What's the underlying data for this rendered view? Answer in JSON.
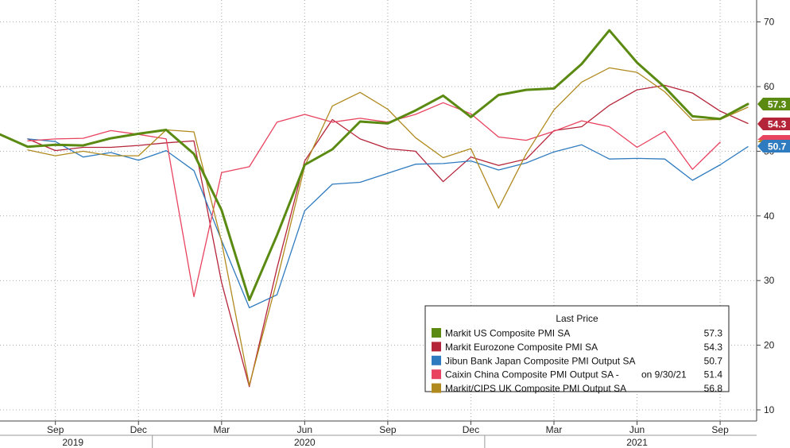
{
  "chart_data": {
    "type": "line",
    "x": [
      "2019-07",
      "2019-08",
      "2019-09",
      "2019-10",
      "2019-11",
      "2019-12",
      "2020-01",
      "2020-02",
      "2020-03",
      "2020-04",
      "2020-05",
      "2020-06",
      "2020-07",
      "2020-08",
      "2020-09",
      "2020-10",
      "2020-11",
      "2020-12",
      "2021-01",
      "2021-02",
      "2021-03",
      "2021-04",
      "2021-05",
      "2021-06",
      "2021-07",
      "2021-08",
      "2021-09",
      "2021-10"
    ],
    "x_ticks": [
      {
        "x": "2019-09",
        "label": "Sep"
      },
      {
        "x": "2019-12",
        "label": "Dec"
      },
      {
        "x": "2020-03",
        "label": "Mar"
      },
      {
        "x": "2020-06",
        "label": "Jun"
      },
      {
        "x": "2020-09",
        "label": "Sep"
      },
      {
        "x": "2020-12",
        "label": "Dec"
      },
      {
        "x": "2021-03",
        "label": "Mar"
      },
      {
        "x": "2021-06",
        "label": "Jun"
      },
      {
        "x": "2021-09",
        "label": "Sep"
      }
    ],
    "year_labels": [
      {
        "x": "2019-09",
        "label": "2019"
      },
      {
        "x": "2020-06",
        "label": "2020"
      },
      {
        "x": "2021-06",
        "label": "2021"
      }
    ],
    "y_ticks": [
      10,
      20,
      30,
      40,
      50,
      60,
      70
    ],
    "ylim": [
      9,
      73
    ],
    "y_axis_side": "right",
    "grid": true,
    "legend": {
      "title": "Last Price",
      "placement": "bottom-right"
    },
    "series": [
      {
        "name": "Markit US Composite PMI SA",
        "last": "57.3",
        "color": "#5a8a12",
        "width": 3,
        "values": [
          52.6,
          50.7,
          51.0,
          50.9,
          52.0,
          52.7,
          53.3,
          49.6,
          40.9,
          27.0,
          37.0,
          47.9,
          50.3,
          54.6,
          54.3,
          56.3,
          58.6,
          55.3,
          58.7,
          59.5,
          59.7,
          63.5,
          68.7,
          63.7,
          59.9,
          55.4,
          55.0,
          57.3
        ]
      },
      {
        "name": "Markit Eurozone Composite PMI SA",
        "last": "54.3",
        "color": "#b5253a",
        "width": 1.3,
        "values": [
          null,
          51.9,
          50.1,
          50.6,
          50.6,
          50.9,
          51.3,
          51.6,
          29.7,
          13.6,
          31.9,
          48.5,
          54.9,
          51.9,
          50.4,
          50.0,
          45.3,
          49.1,
          47.8,
          48.8,
          53.2,
          53.8,
          57.1,
          59.5,
          60.2,
          59.0,
          56.2,
          54.3
        ]
      },
      {
        "name": "Jibun Bank Japan Composite PMI Output SA",
        "last": "50.7",
        "color": "#2f7bbf",
        "width": 1.3,
        "values": [
          null,
          51.9,
          51.5,
          49.1,
          49.8,
          48.6,
          50.1,
          47.0,
          36.2,
          25.8,
          27.8,
          40.8,
          44.9,
          45.2,
          46.6,
          48.0,
          48.1,
          48.5,
          47.1,
          48.2,
          49.9,
          51.0,
          48.8,
          48.9,
          48.8,
          45.5,
          47.9,
          50.7
        ]
      },
      {
        "name": "Caixin China Composite PMI Output SA -",
        "note": "on 9/30/21",
        "last": "51.4",
        "color": "#e8435f",
        "width": 1.3,
        "values": [
          null,
          51.6,
          51.9,
          52.0,
          53.2,
          52.6,
          51.9,
          27.5,
          46.7,
          47.6,
          54.5,
          55.7,
          54.5,
          55.1,
          54.5,
          55.7,
          57.5,
          55.8,
          52.2,
          51.7,
          53.1,
          54.7,
          53.8,
          50.6,
          53.1,
          47.2,
          51.4,
          null
        ]
      },
      {
        "name": "Markit/CIPS UK Composite PMI Output SA",
        "last": "56.8",
        "color": "#b08a1e",
        "width": 1.3,
        "values": [
          null,
          50.2,
          49.3,
          50.0,
          49.3,
          49.3,
          53.3,
          53.0,
          36.0,
          13.8,
          30.0,
          47.7,
          57.0,
          59.1,
          56.5,
          52.1,
          49.0,
          50.4,
          41.2,
          49.6,
          56.4,
          60.7,
          62.9,
          62.2,
          59.2,
          54.8,
          54.9,
          56.8
        ]
      }
    ]
  }
}
